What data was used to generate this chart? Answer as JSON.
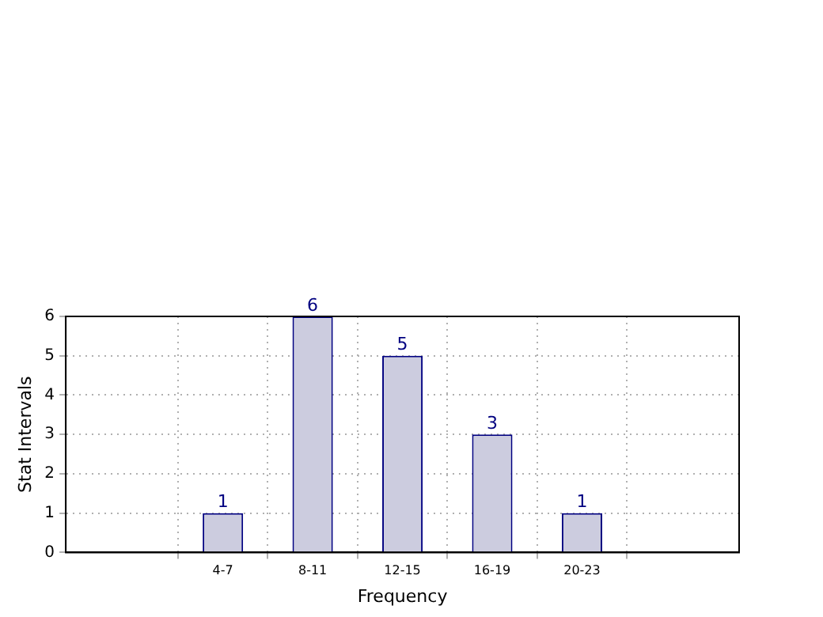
{
  "chart_data": {
    "type": "bar",
    "xlabel": "Frequency",
    "ylabel": "Stat Intervals",
    "categories": [
      "4-7",
      "8-11",
      "12-15",
      "16-19",
      "20-23"
    ],
    "values": [
      1,
      6,
      5,
      3,
      1
    ],
    "color": "#ccccdf",
    "ylim": [
      0,
      6
    ],
    "yticks": [
      0,
      1,
      2,
      3,
      4,
      5,
      6
    ],
    "grid": true,
    "data_labels": true,
    "legend": false
  }
}
